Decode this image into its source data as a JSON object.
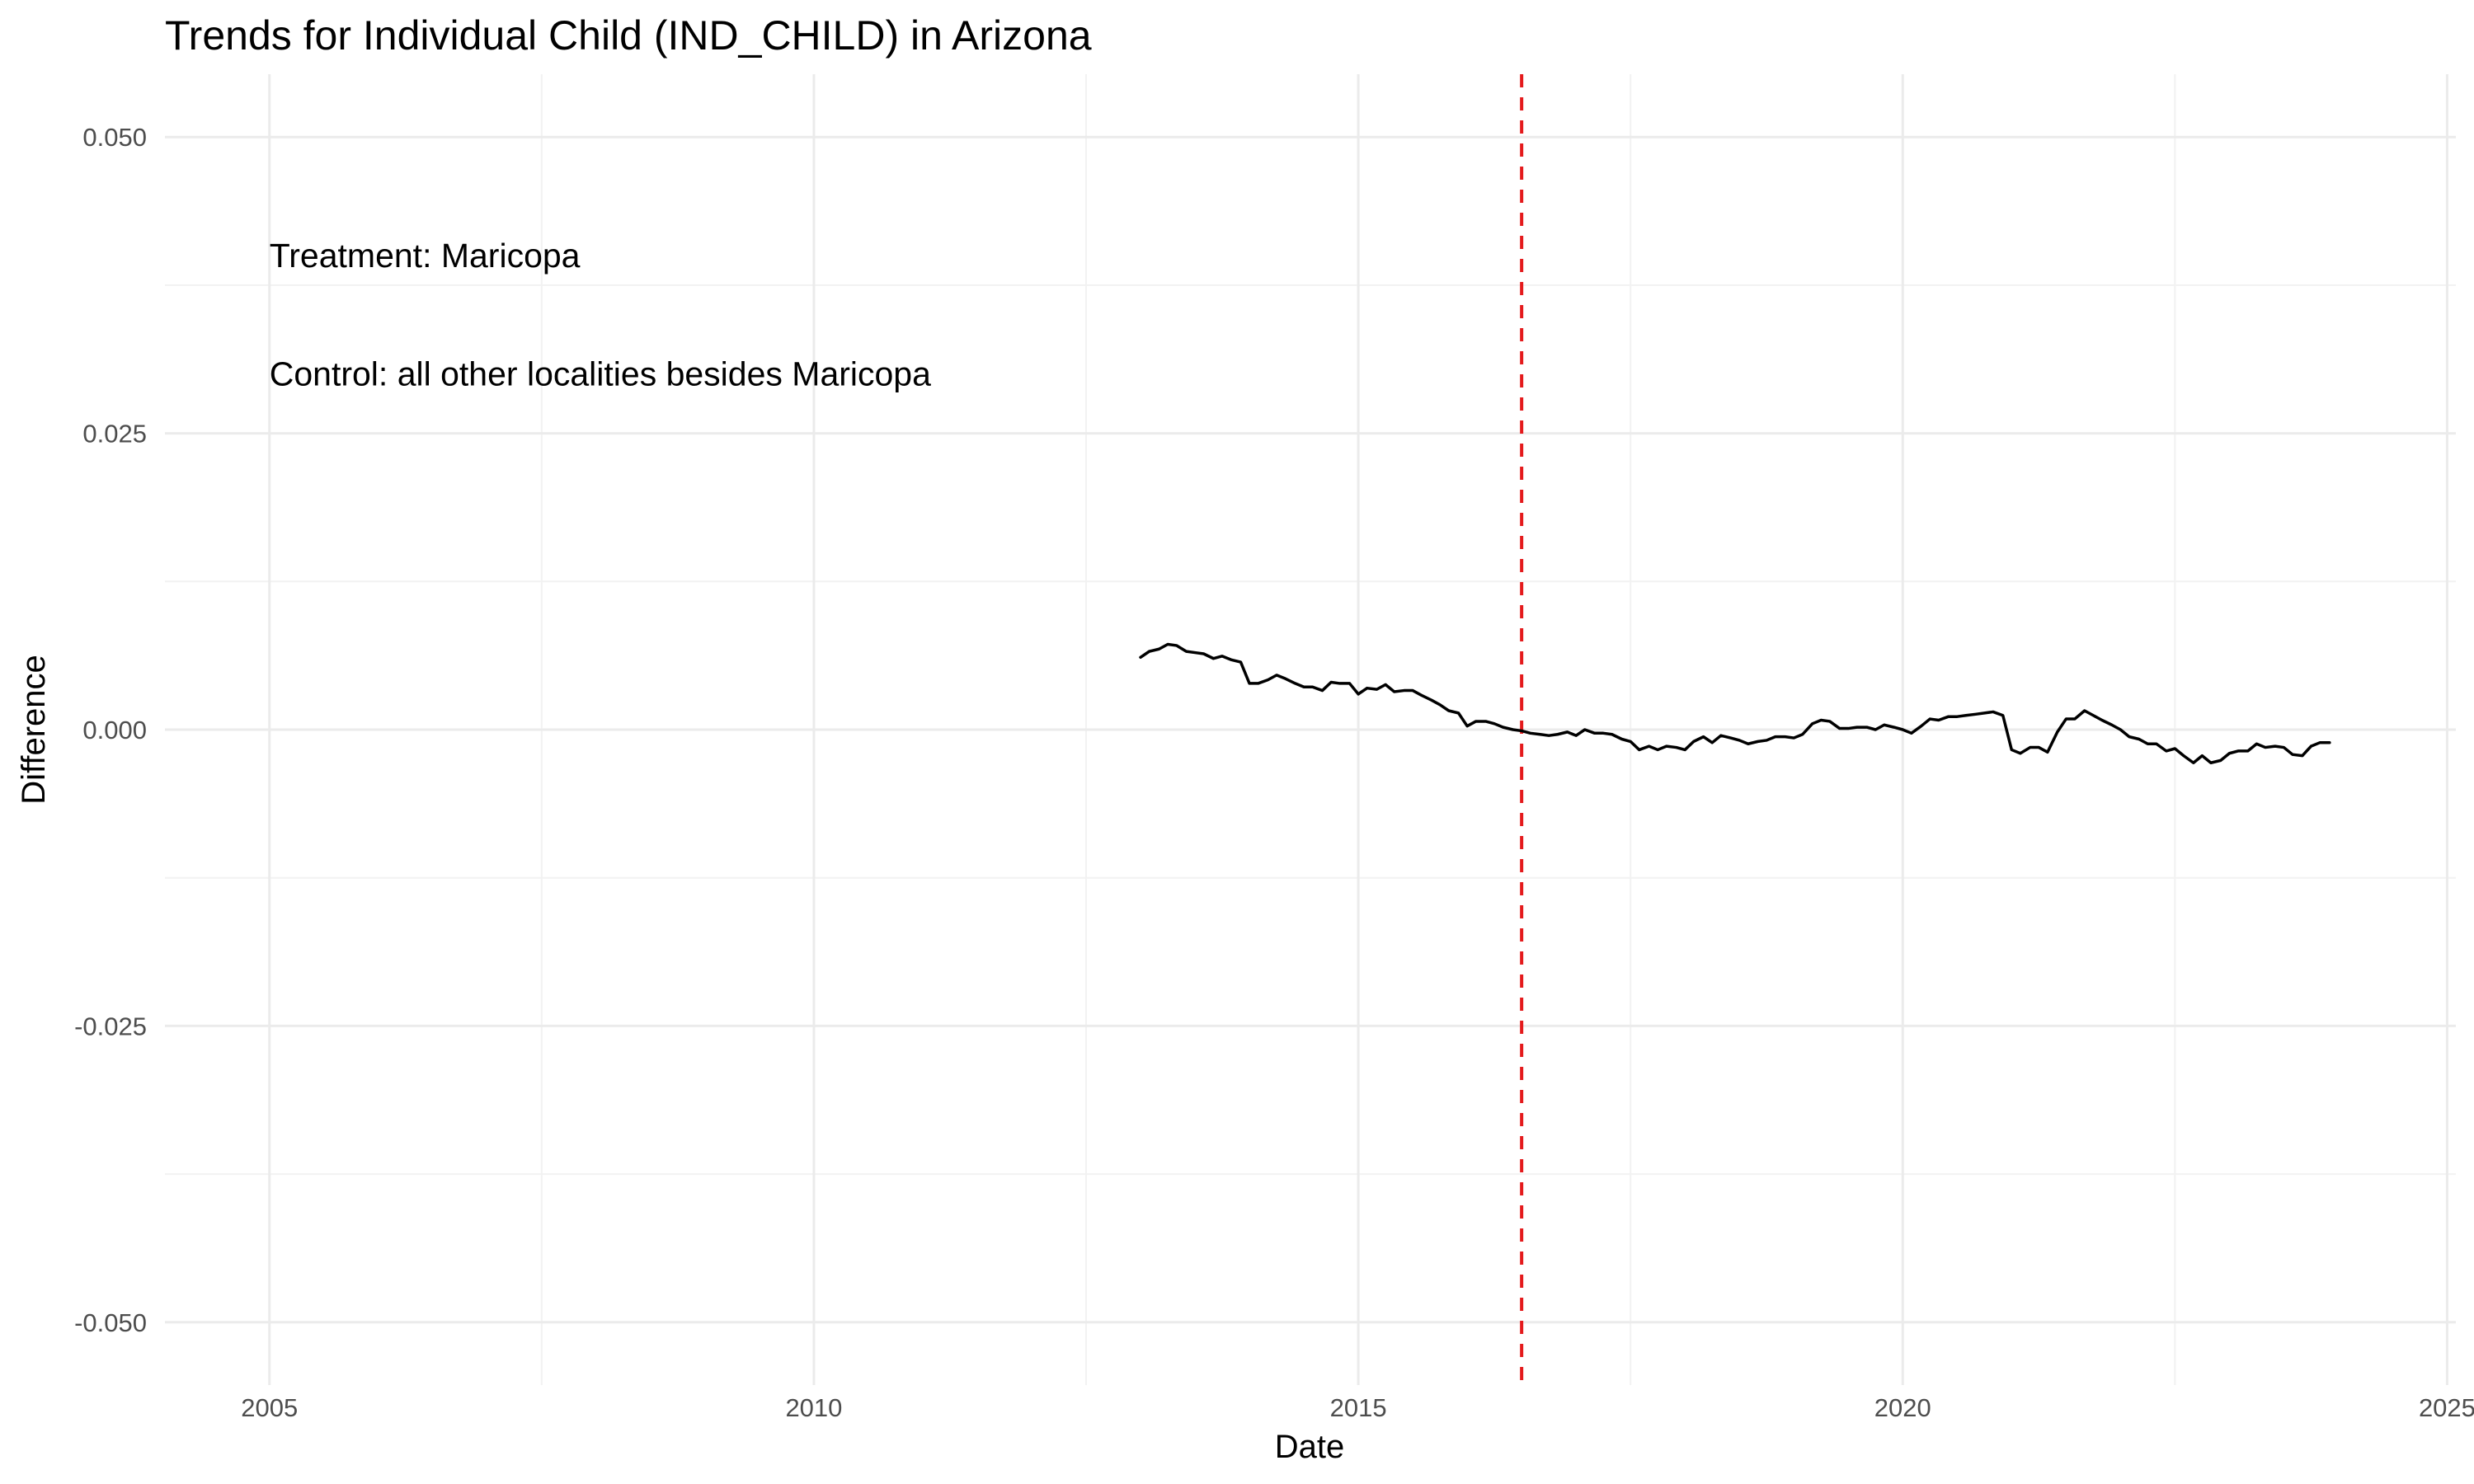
{
  "chart_data": {
    "type": "line",
    "title": "Trends for Individual Child (IND_CHILD) in Arizona",
    "xlabel": "Date",
    "ylabel": "Difference",
    "xlim": [
      2004.04,
      2025.08
    ],
    "ylim": [
      -0.0553,
      0.0553
    ],
    "x_ticks": [
      2005,
      2010,
      2015,
      2020,
      2025
    ],
    "x_minor_ticks": [
      2007.5,
      2012.5,
      2017.5,
      2022.5
    ],
    "y_ticks": [
      -0.05,
      -0.025,
      0,
      0.025,
      0.05
    ],
    "y_tick_labels": [
      "-0.050",
      "-0.025",
      "0.000",
      "0.025",
      "0.050"
    ],
    "y_minor_ticks": [
      -0.0375,
      -0.0125,
      0.0125,
      0.0375
    ],
    "grid": true,
    "annotations": [
      {
        "text": "Treatment: Maricopa",
        "x": 2005,
        "y": 0.04
      },
      {
        "text": "Control: all other localities besides Maricopa",
        "x": 2005,
        "y": 0.03
      }
    ],
    "vline": {
      "x": 2016.5,
      "color": "#e41a1c",
      "style": "dashed"
    },
    "series": [
      {
        "color": "#000000",
        "x": [
          2013.0,
          2013.08,
          2013.17,
          2013.25,
          2013.33,
          2013.42,
          2013.5,
          2013.58,
          2013.67,
          2013.75,
          2013.83,
          2013.92,
          2014.0,
          2014.08,
          2014.17,
          2014.25,
          2014.33,
          2014.42,
          2014.5,
          2014.58,
          2014.67,
          2014.75,
          2014.83,
          2014.92,
          2015.0,
          2015.08,
          2015.17,
          2015.25,
          2015.33,
          2015.42,
          2015.5,
          2015.58,
          2015.67,
          2015.75,
          2015.83,
          2015.92,
          2016.0,
          2016.08,
          2016.17,
          2016.25,
          2016.33,
          2016.42,
          2016.5,
          2016.58,
          2016.67,
          2016.75,
          2016.83,
          2016.92,
          2017.0,
          2017.08,
          2017.17,
          2017.25,
          2017.33,
          2017.42,
          2017.5,
          2017.58,
          2017.67,
          2017.75,
          2017.83,
          2017.92,
          2018.0,
          2018.08,
          2018.17,
          2018.25,
          2018.33,
          2018.42,
          2018.5,
          2018.58,
          2018.67,
          2018.75,
          2018.83,
          2018.92,
          2019.0,
          2019.08,
          2019.17,
          2019.25,
          2019.33,
          2019.42,
          2019.5,
          2019.58,
          2019.67,
          2019.75,
          2019.83,
          2019.92,
          2020.0,
          2020.08,
          2020.17,
          2020.25,
          2020.33,
          2020.42,
          2020.5,
          2020.58,
          2020.67,
          2020.75,
          2020.83,
          2020.92,
          2021.0,
          2021.08,
          2021.17,
          2021.25,
          2021.33,
          2021.42,
          2021.5,
          2021.58,
          2021.67,
          2021.75,
          2021.83,
          2021.92,
          2022.0,
          2022.08,
          2022.17,
          2022.25,
          2022.33,
          2022.42,
          2022.5,
          2022.58,
          2022.67,
          2022.75,
          2022.83,
          2022.92,
          2023.0,
          2023.08,
          2023.17,
          2023.25,
          2023.33,
          2023.42,
          2023.5,
          2023.58,
          2023.67,
          2023.75,
          2023.83,
          2023.92
        ],
        "y": [
          0.0061,
          0.0066,
          0.0068,
          0.0072,
          0.0071,
          0.0066,
          0.0065,
          0.0064,
          0.006,
          0.0062,
          0.0059,
          0.0057,
          0.0039,
          0.0039,
          0.0042,
          0.0046,
          0.0043,
          0.0039,
          0.0036,
          0.0036,
          0.0033,
          0.004,
          0.0039,
          0.0039,
          0.003,
          0.0035,
          0.0034,
          0.0038,
          0.0032,
          0.0033,
          0.0033,
          0.0029,
          0.0025,
          0.0021,
          0.0016,
          0.0014,
          0.0003,
          0.0007,
          0.0007,
          0.0005,
          0.0002,
          0.0,
          -0.0001,
          -0.0003,
          -0.0004,
          -0.0005,
          -0.0004,
          -0.0002,
          -0.0005,
          0.0,
          -0.0003,
          -0.0003,
          -0.0004,
          -0.0008,
          -0.001,
          -0.0017,
          -0.0014,
          -0.0017,
          -0.0014,
          -0.0015,
          -0.0017,
          -0.001,
          -0.0006,
          -0.0011,
          -0.0005,
          -0.0007,
          -0.0009,
          -0.0012,
          -0.001,
          -0.0009,
          -0.0006,
          -0.0006,
          -0.0007,
          -0.0004,
          0.0005,
          0.0008,
          0.0007,
          0.0001,
          0.0001,
          0.0002,
          0.0002,
          0.0,
          0.0004,
          0.0002,
          0.0,
          -0.0003,
          0.0003,
          0.0009,
          0.0008,
          0.0011,
          0.0011,
          0.0012,
          0.0013,
          0.0014,
          0.0015,
          0.0012,
          -0.0017,
          -0.002,
          -0.0015,
          -0.0015,
          -0.0019,
          -0.0002,
          0.0009,
          0.0009,
          0.0016,
          0.0012,
          0.0008,
          0.0004,
          0.0,
          -0.0006,
          -0.0008,
          -0.0012,
          -0.0012,
          -0.0018,
          -0.0016,
          -0.0022,
          -0.0028,
          -0.0022,
          -0.0028,
          -0.0026,
          -0.002,
          -0.0018,
          -0.0018,
          -0.0012,
          -0.0015,
          -0.0014,
          -0.0015,
          -0.0021,
          -0.0022,
          -0.0014,
          -0.0011,
          -0.0011
        ]
      }
    ]
  }
}
